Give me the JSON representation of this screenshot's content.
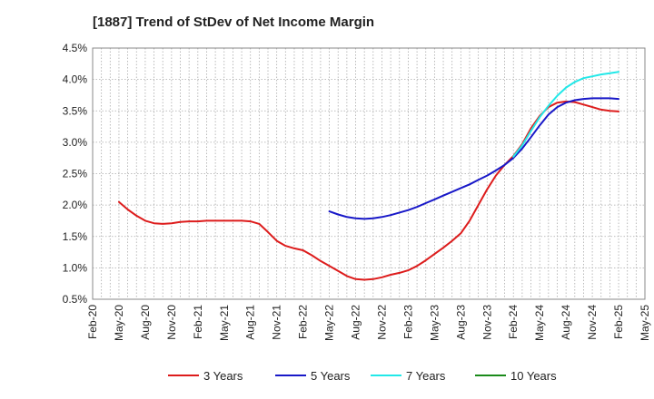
{
  "chart_data": {
    "type": "line",
    "title": "[1887]  Trend of StDev of Net Income Margin",
    "xlabel": "",
    "ylabel": "",
    "ylim": [
      0.5,
      4.5
    ],
    "y_ticks": [
      "0.5%",
      "1.0%",
      "1.5%",
      "2.0%",
      "2.5%",
      "3.0%",
      "3.5%",
      "4.0%",
      "4.5%"
    ],
    "y_tick_values": [
      0.5,
      1.0,
      1.5,
      2.0,
      2.5,
      3.0,
      3.5,
      4.0,
      4.5
    ],
    "x_ticks": [
      "Feb-20",
      "May-20",
      "Aug-20",
      "Nov-20",
      "Feb-21",
      "May-21",
      "Aug-21",
      "Nov-21",
      "Feb-22",
      "May-22",
      "Aug-22",
      "Nov-22",
      "Feb-23",
      "May-23",
      "Aug-23",
      "Nov-23",
      "Feb-24",
      "May-24",
      "Aug-24",
      "Nov-24",
      "Feb-25",
      "May-25"
    ],
    "grid": true,
    "legend_position": "bottom",
    "series": [
      {
        "name": "3 Years",
        "color": "#dd1c1c",
        "points": [
          [
            "May-20",
            2.05
          ],
          [
            "Jun-20",
            1.93
          ],
          [
            "Jul-20",
            1.83
          ],
          [
            "Aug-20",
            1.75
          ],
          [
            "Sep-20",
            1.71
          ],
          [
            "Oct-20",
            1.7
          ],
          [
            "Nov-20",
            1.71
          ],
          [
            "Dec-20",
            1.73
          ],
          [
            "Jan-21",
            1.74
          ],
          [
            "Feb-21",
            1.74
          ],
          [
            "Mar-21",
            1.75
          ],
          [
            "Apr-21",
            1.75
          ],
          [
            "May-21",
            1.75
          ],
          [
            "Jun-21",
            1.75
          ],
          [
            "Jul-21",
            1.75
          ],
          [
            "Aug-21",
            1.74
          ],
          [
            "Sep-21",
            1.7
          ],
          [
            "Oct-21",
            1.57
          ],
          [
            "Nov-21",
            1.43
          ],
          [
            "Dec-21",
            1.35
          ],
          [
            "Jan-22",
            1.31
          ],
          [
            "Feb-22",
            1.28
          ],
          [
            "Mar-22",
            1.2
          ],
          [
            "Apr-22",
            1.11
          ],
          [
            "May-22",
            1.03
          ],
          [
            "Jun-22",
            0.95
          ],
          [
            "Jul-22",
            0.87
          ],
          [
            "Aug-22",
            0.82
          ],
          [
            "Sep-22",
            0.81
          ],
          [
            "Oct-22",
            0.82
          ],
          [
            "Nov-22",
            0.85
          ],
          [
            "Dec-22",
            0.89
          ],
          [
            "Jan-23",
            0.92
          ],
          [
            "Feb-23",
            0.96
          ],
          [
            "Mar-23",
            1.03
          ],
          [
            "Apr-23",
            1.12
          ],
          [
            "May-23",
            1.22
          ],
          [
            "Jun-23",
            1.32
          ],
          [
            "Jul-23",
            1.43
          ],
          [
            "Aug-23",
            1.55
          ],
          [
            "Sep-23",
            1.75
          ],
          [
            "Oct-23",
            2.0
          ],
          [
            "Nov-23",
            2.25
          ],
          [
            "Dec-23",
            2.47
          ],
          [
            "Jan-24",
            2.64
          ],
          [
            "Feb-24",
            2.78
          ],
          [
            "Mar-24",
            2.97
          ],
          [
            "Apr-24",
            3.22
          ],
          [
            "May-24",
            3.42
          ],
          [
            "Jun-24",
            3.56
          ],
          [
            "Jul-24",
            3.63
          ],
          [
            "Aug-24",
            3.65
          ],
          [
            "Sep-24",
            3.64
          ],
          [
            "Oct-24",
            3.6
          ],
          [
            "Nov-24",
            3.56
          ],
          [
            "Dec-24",
            3.52
          ],
          [
            "Jan-25",
            3.5
          ],
          [
            "Feb-25",
            3.49
          ]
        ]
      },
      {
        "name": "5 Years",
        "color": "#1818c8",
        "points": [
          [
            "May-22",
            1.9
          ],
          [
            "Jun-22",
            1.85
          ],
          [
            "Jul-22",
            1.81
          ],
          [
            "Aug-22",
            1.79
          ],
          [
            "Sep-22",
            1.78
          ],
          [
            "Oct-22",
            1.79
          ],
          [
            "Nov-22",
            1.81
          ],
          [
            "Dec-22",
            1.84
          ],
          [
            "Jan-23",
            1.88
          ],
          [
            "Feb-23",
            1.92
          ],
          [
            "Mar-23",
            1.97
          ],
          [
            "Apr-23",
            2.03
          ],
          [
            "May-23",
            2.09
          ],
          [
            "Jun-23",
            2.15
          ],
          [
            "Jul-23",
            2.21
          ],
          [
            "Aug-23",
            2.27
          ],
          [
            "Sep-23",
            2.33
          ],
          [
            "Oct-23",
            2.4
          ],
          [
            "Nov-23",
            2.47
          ],
          [
            "Dec-23",
            2.55
          ],
          [
            "Jan-24",
            2.64
          ],
          [
            "Feb-24",
            2.75
          ],
          [
            "Mar-24",
            2.9
          ],
          [
            "Apr-24",
            3.08
          ],
          [
            "May-24",
            3.27
          ],
          [
            "Jun-24",
            3.44
          ],
          [
            "Jul-24",
            3.56
          ],
          [
            "Aug-24",
            3.63
          ],
          [
            "Sep-24",
            3.67
          ],
          [
            "Oct-24",
            3.69
          ],
          [
            "Nov-24",
            3.7
          ],
          [
            "Dec-24",
            3.7
          ],
          [
            "Jan-25",
            3.7
          ],
          [
            "Feb-25",
            3.69
          ]
        ]
      },
      {
        "name": "7 Years",
        "color": "#22e8e8",
        "points": [
          [
            "Feb-24",
            2.77
          ],
          [
            "Mar-24",
            2.95
          ],
          [
            "Apr-24",
            3.18
          ],
          [
            "May-24",
            3.4
          ],
          [
            "Jun-24",
            3.58
          ],
          [
            "Jul-24",
            3.74
          ],
          [
            "Aug-24",
            3.87
          ],
          [
            "Sep-24",
            3.96
          ],
          [
            "Oct-24",
            4.02
          ],
          [
            "Nov-24",
            4.05
          ],
          [
            "Dec-24",
            4.08
          ],
          [
            "Jan-25",
            4.1
          ],
          [
            "Feb-25",
            4.12
          ]
        ]
      },
      {
        "name": "10 Years",
        "color": "#1a8a1a",
        "points": []
      }
    ]
  }
}
